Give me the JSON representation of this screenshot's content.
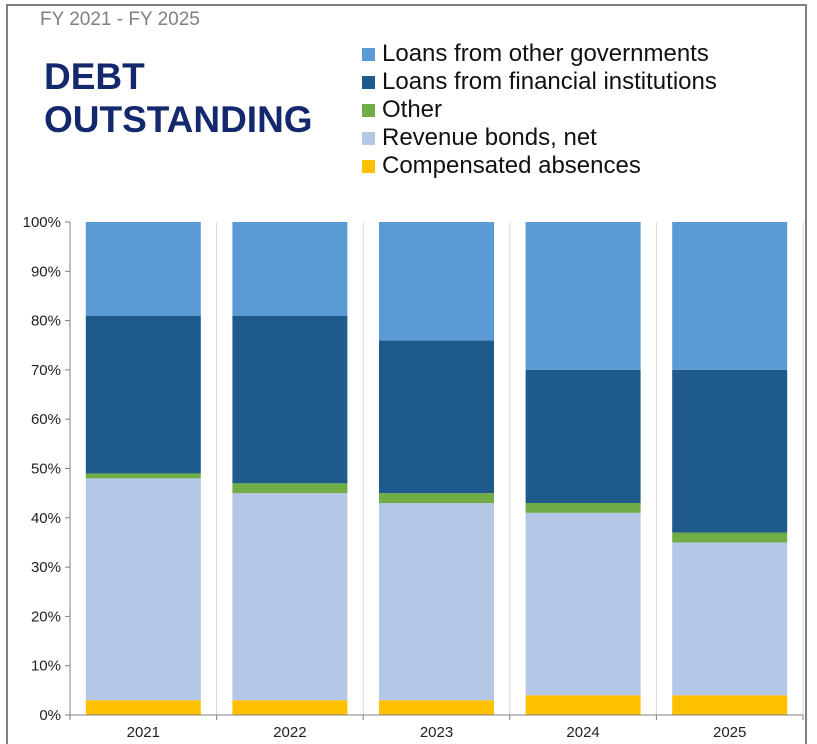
{
  "header": {
    "subtitle": "FY 2021 - FY 2025",
    "title_line1": "DEBT",
    "title_line2": "OUTSTANDING"
  },
  "chart_data": {
    "type": "bar",
    "stacked": true,
    "percent": true,
    "categories": [
      "2021",
      "2022",
      "2023",
      "2024",
      "2025"
    ],
    "series": [
      {
        "name": "Compensated absences",
        "color": "#ffc000",
        "values": [
          3,
          3,
          3,
          4,
          4
        ]
      },
      {
        "name": "Revenue bonds, net",
        "color": "#b4c7e7",
        "values": [
          45,
          42,
          40,
          37,
          31
        ]
      },
      {
        "name": "Other",
        "color": "#70ad47",
        "values": [
          1,
          2,
          2,
          2,
          2
        ]
      },
      {
        "name": "Loans from financial institutions",
        "color": "#1f5a8c",
        "values": [
          32,
          34,
          31,
          27,
          33
        ]
      },
      {
        "name": "Loans from other governments",
        "color": "#5b9bd5",
        "values": [
          19,
          19,
          24,
          30,
          30
        ]
      }
    ],
    "legend_order": [
      "Loans from other governments",
      "Loans from financial institutions",
      "Other",
      "Revenue bonds, net",
      "Compensated absences"
    ],
    "ylim": [
      0,
      100
    ],
    "yticks": [
      "0%",
      "10%",
      "20%",
      "30%",
      "40%",
      "50%",
      "60%",
      "70%",
      "80%",
      "90%",
      "100%"
    ],
    "grid": "vertical",
    "legend_position": "top-right"
  }
}
